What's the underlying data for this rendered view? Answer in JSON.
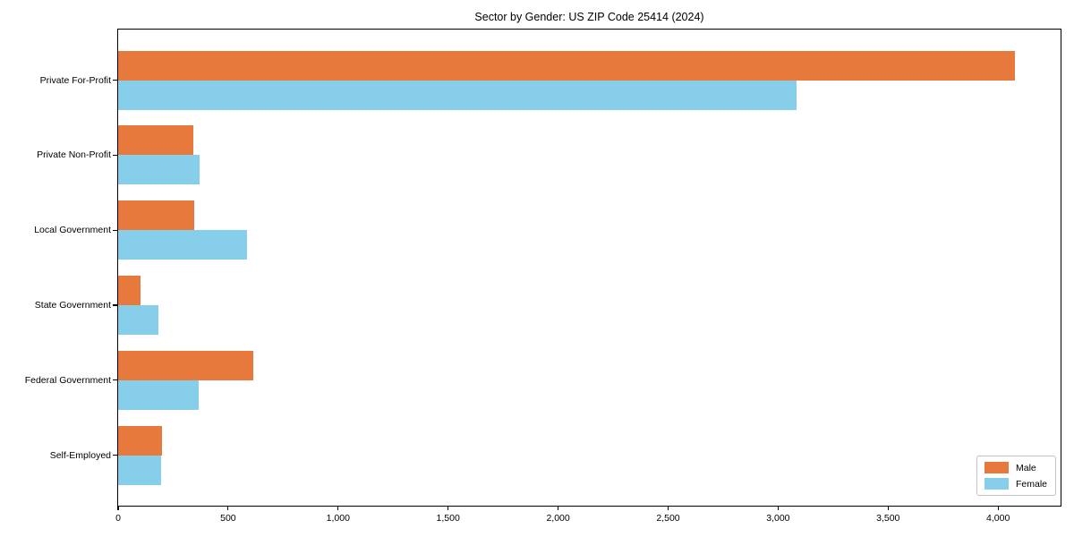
{
  "chart_data": {
    "type": "bar",
    "orientation": "horizontal",
    "title": "Sector by Gender: US ZIP Code 25414 (2024)",
    "categories": [
      "Private For-Profit",
      "Private Non-Profit",
      "Local Government",
      "State Government",
      "Federal Government",
      "Self-Employed"
    ],
    "series": [
      {
        "name": "Male",
        "color": "#E8793C",
        "values": [
          4075,
          340,
          345,
          100,
          615,
          200
        ]
      },
      {
        "name": "Female",
        "color": "#87CEEB",
        "values": [
          3085,
          370,
          585,
          185,
          365,
          195
        ]
      }
    ],
    "xlabel": "",
    "ylabel": "",
    "xlim": [
      0,
      4280
    ],
    "x_ticks": [
      "0",
      "500",
      "1,000",
      "1,500",
      "2,000",
      "2,500",
      "3,000",
      "3,500",
      "4,000"
    ],
    "x_tick_values": [
      0,
      500,
      1000,
      1500,
      2000,
      2500,
      3000,
      3500,
      4000
    ],
    "grid": false,
    "legend": {
      "position": "lower right",
      "entries": [
        "Male",
        "Female"
      ]
    },
    "colors": {
      "axis": "#000000",
      "text": "#000000",
      "background": "#ffffff",
      "legend_border": "#c3c3c3"
    }
  }
}
